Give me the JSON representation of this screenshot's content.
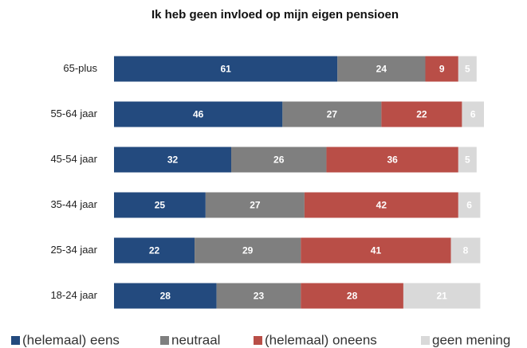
{
  "chart_data": {
    "type": "stacked-bar-horizontal",
    "title": "Ik heb geen invloed op mijn eigen pensioen",
    "categories": [
      "65-plus",
      "55-64 jaar",
      "45-54 jaar",
      "35-44 jaar",
      "25-34 jaar",
      "18-24 jaar"
    ],
    "series": [
      {
        "name": "(helemaal) eens",
        "color": "#234a7e",
        "values": [
          61,
          46,
          32,
          25,
          22,
          28
        ]
      },
      {
        "name": "neutraal",
        "color": "#7f7f7f",
        "values": [
          24,
          27,
          26,
          27,
          29,
          23
        ]
      },
      {
        "name": "(helemaal) oneens",
        "color": "#b94e47",
        "values": [
          9,
          22,
          36,
          42,
          41,
          28
        ]
      },
      {
        "name": "geen mening",
        "color": "#d9d9d9",
        "values": [
          5,
          6,
          5,
          6,
          8,
          21
        ]
      }
    ],
    "legend": "bottom"
  }
}
